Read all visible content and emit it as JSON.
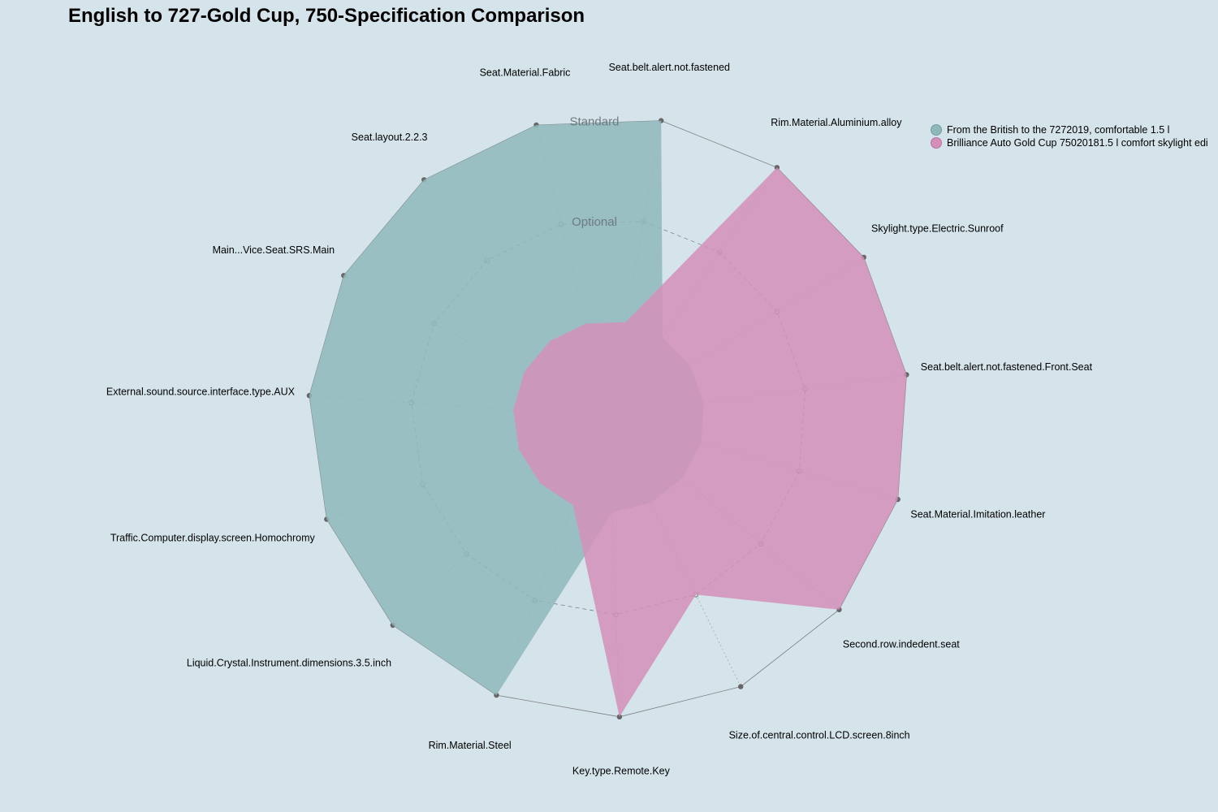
{
  "chart_data": {
    "type": "radar",
    "title": "English to 727-Gold Cup, 750-Specification Comparison",
    "levels": [
      "Optional",
      "Standard"
    ],
    "axes": [
      "Seat.belt.alert.not.fastened",
      "Rim.Material.Aluminium.alloy",
      "Skylight.type.Electric.Sunroof",
      "Seat.belt.alert.not.fastened.Front.Seat",
      "Seat.Material.Imitation.leather",
      "Second.row.indedent.seat",
      "Size.of.central.control.LCD.screen.8inch",
      "Key.type.Remote.Key",
      "Rim.Material.Steel",
      "Liquid.Crystal.Instrument.dimensions.3.5.inch",
      "Traffic.Computer.display.screen.Homochromy",
      "External.sound.source.interface.type.AUX",
      "Main...Vice.Seat.SRS.Main",
      "Seat.layout.2.2.3",
      "Seat.Material.Fabric"
    ],
    "series": [
      {
        "name": "From the British to the 7272019, comfortable 1.5 l",
        "color": "#8fb8bc",
        "values": [
          1,
          0,
          0,
          0,
          0,
          0,
          0,
          0,
          1,
          1,
          1,
          1,
          1,
          1,
          1
        ]
      },
      {
        "name": "Brilliance Auto Gold Cup 75020181.5 l comfort skylight edi",
        "color": "#d38fba",
        "values": [
          0,
          1,
          1,
          1,
          1,
          1,
          0.5,
          1,
          0,
          0,
          0,
          0,
          0,
          0,
          0
        ]
      }
    ],
    "legend": "top-right"
  }
}
